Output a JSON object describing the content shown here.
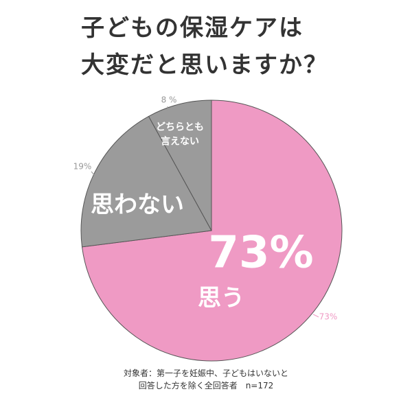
{
  "chart_data": {
    "type": "pie",
    "title": "子どもの保湿ケアは\n大変だと思いますか？",
    "categories": [
      "思う",
      "思わない",
      "どちらとも\n言えない"
    ],
    "values": [
      73,
      19,
      8
    ],
    "value_labels": [
      "73%",
      "19%",
      "8 %"
    ],
    "colors": [
      "#ef9ac4",
      "#9b9b9b",
      "#9b9b9b"
    ],
    "footnote": "対象者：第一子を妊娠中、子どもはいないと\n回答した方を除く全回答者　n=172"
  }
}
